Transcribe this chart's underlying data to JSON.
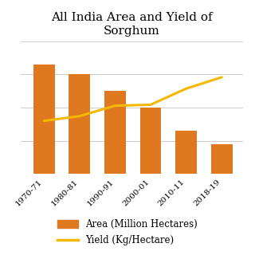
{
  "title": "All India Area and Yield of\nSorghum",
  "categories": [
    "1970-71",
    "1980-81",
    "1990-91",
    "2000-01",
    "2010-11",
    "2018-19"
  ],
  "area_values": [
    16.5,
    15.0,
    12.5,
    10.0,
    6.5,
    4.5
  ],
  "yield_values": [
    560,
    610,
    720,
    730,
    900,
    1020
  ],
  "bar_color": "#E07820",
  "line_color": "#F5B800",
  "bar_label": "Area (Million Hectares)",
  "line_label": "Yield (Kg/Hectare)",
  "area_ylim": [
    0,
    20
  ],
  "yield_ylim": [
    0,
    1400
  ],
  "bg_color": "#ffffff",
  "title_fontsize": 11,
  "tick_fontsize": 7.5,
  "legend_fontsize": 8.5
}
